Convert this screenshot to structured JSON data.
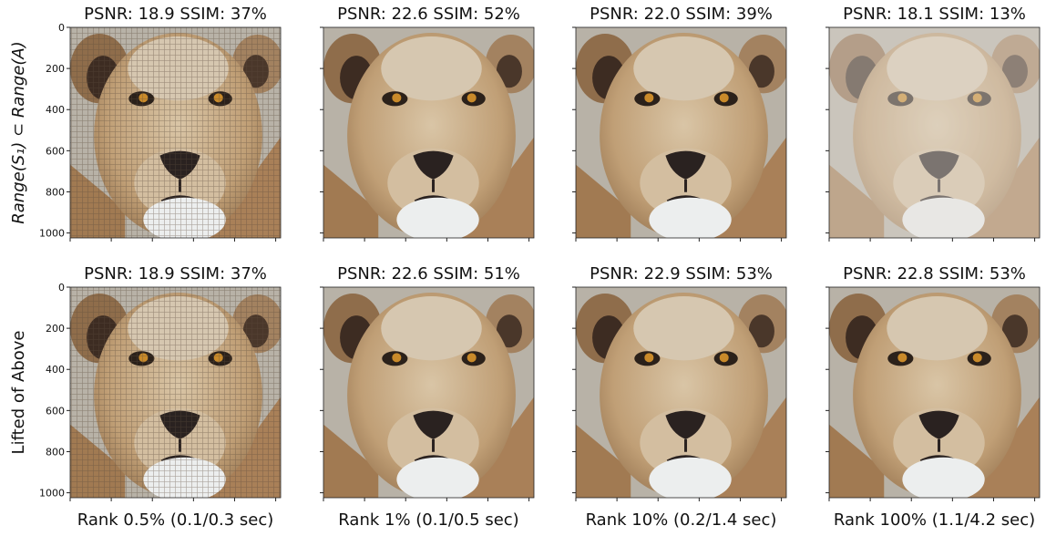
{
  "figure": {
    "row_labels": [
      "Range(S₁) ⊂ Range(A)",
      "Lifted of Above"
    ],
    "titles": [
      [
        "PSNR: 18.9  SSIM: 37%",
        "PSNR: 22.6  SSIM: 52%",
        "PSNR: 22.0  SSIM: 39%",
        "PSNR: 18.1  SSIM: 13%"
      ],
      [
        "PSNR: 18.9  SSIM: 37%",
        "PSNR: 22.6  SSIM: 51%",
        "PSNR: 22.9  SSIM: 53%",
        "PSNR: 22.8  SSIM: 53%"
      ]
    ],
    "column_labels": [
      "Rank 0.5% (0.1/0.3 sec)",
      "Rank 1% (0.1/0.5 sec)",
      "Rank 10% (0.2/1.4 sec)",
      "Rank 100% (1.1/4.2 sec)"
    ],
    "yticks": [
      0,
      200,
      400,
      600,
      800,
      1000
    ],
    "ylim": [
      0,
      1024
    ]
  }
}
